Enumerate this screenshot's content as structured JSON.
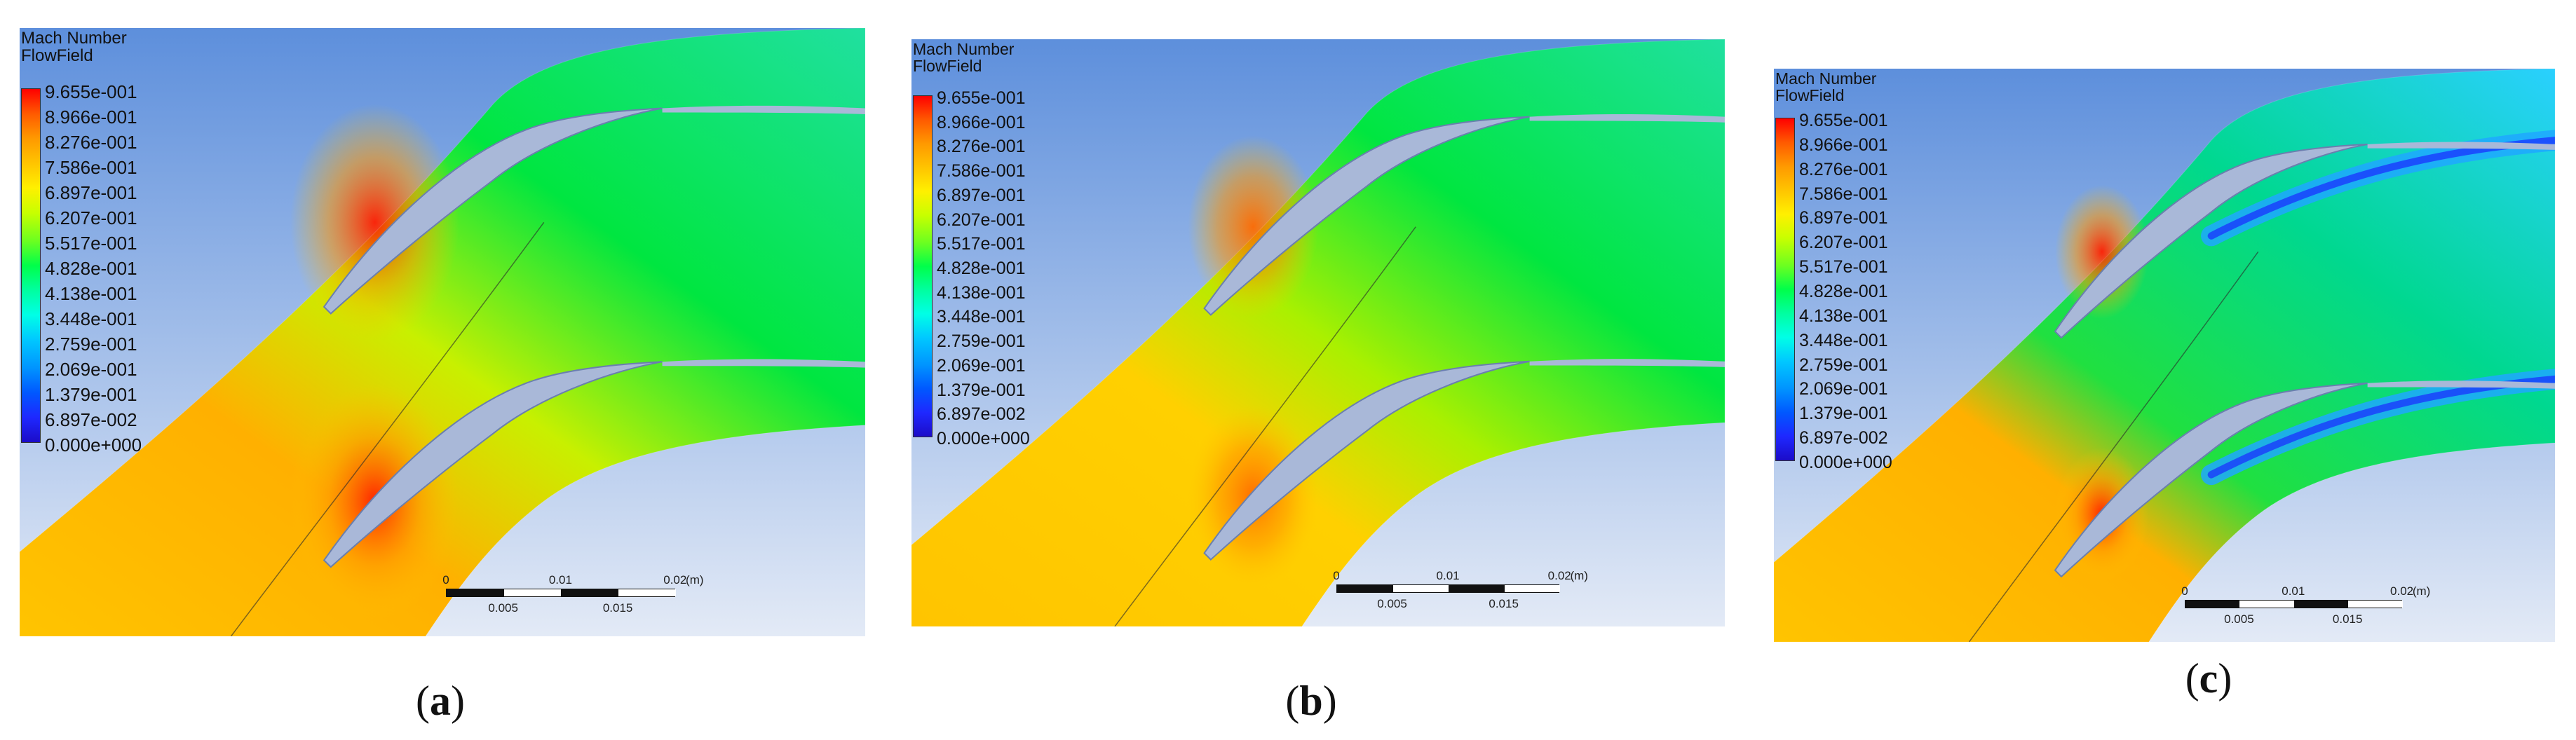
{
  "panels": [
    {
      "id": "a",
      "legend_title": "Mach Number",
      "legend_subtitle": "FlowField",
      "caption_letter": "a",
      "scale_top": [
        "0",
        "0.01",
        "0.02",
        "(m)"
      ],
      "scale_bottom": [
        "0.005",
        "0.015"
      ]
    },
    {
      "id": "b",
      "legend_title": "Mach Number",
      "legend_subtitle": "FlowField",
      "caption_letter": "b",
      "scale_top": [
        "0",
        "0.01",
        "0.02",
        "(m)"
      ],
      "scale_bottom": [
        "0.005",
        "0.015"
      ]
    },
    {
      "id": "c",
      "legend_title": "Mach Number",
      "legend_subtitle": "FlowField",
      "caption_letter": "c",
      "scale_top": [
        "0",
        "0.01",
        "0.02",
        "(m)"
      ],
      "scale_bottom": [
        "0.005",
        "0.015"
      ]
    }
  ],
  "legend_values": [
    "9.655e-001",
    "8.966e-001",
    "8.276e-001",
    "7.586e-001",
    "6.897e-001",
    "6.207e-001",
    "5.517e-001",
    "4.828e-001",
    "4.138e-001",
    "3.448e-001",
    "2.759e-001",
    "2.069e-001",
    "1.379e-001",
    "6.897e-002",
    "0.000e+000"
  ],
  "colors": {
    "background_top": "#5d8fdc",
    "background_bottom": "#e3eaf6",
    "high_mach": "#ff1e00",
    "mid_mach": "#00e640",
    "low_mach": "#1a2aff",
    "inlet": "#ffc400"
  }
}
